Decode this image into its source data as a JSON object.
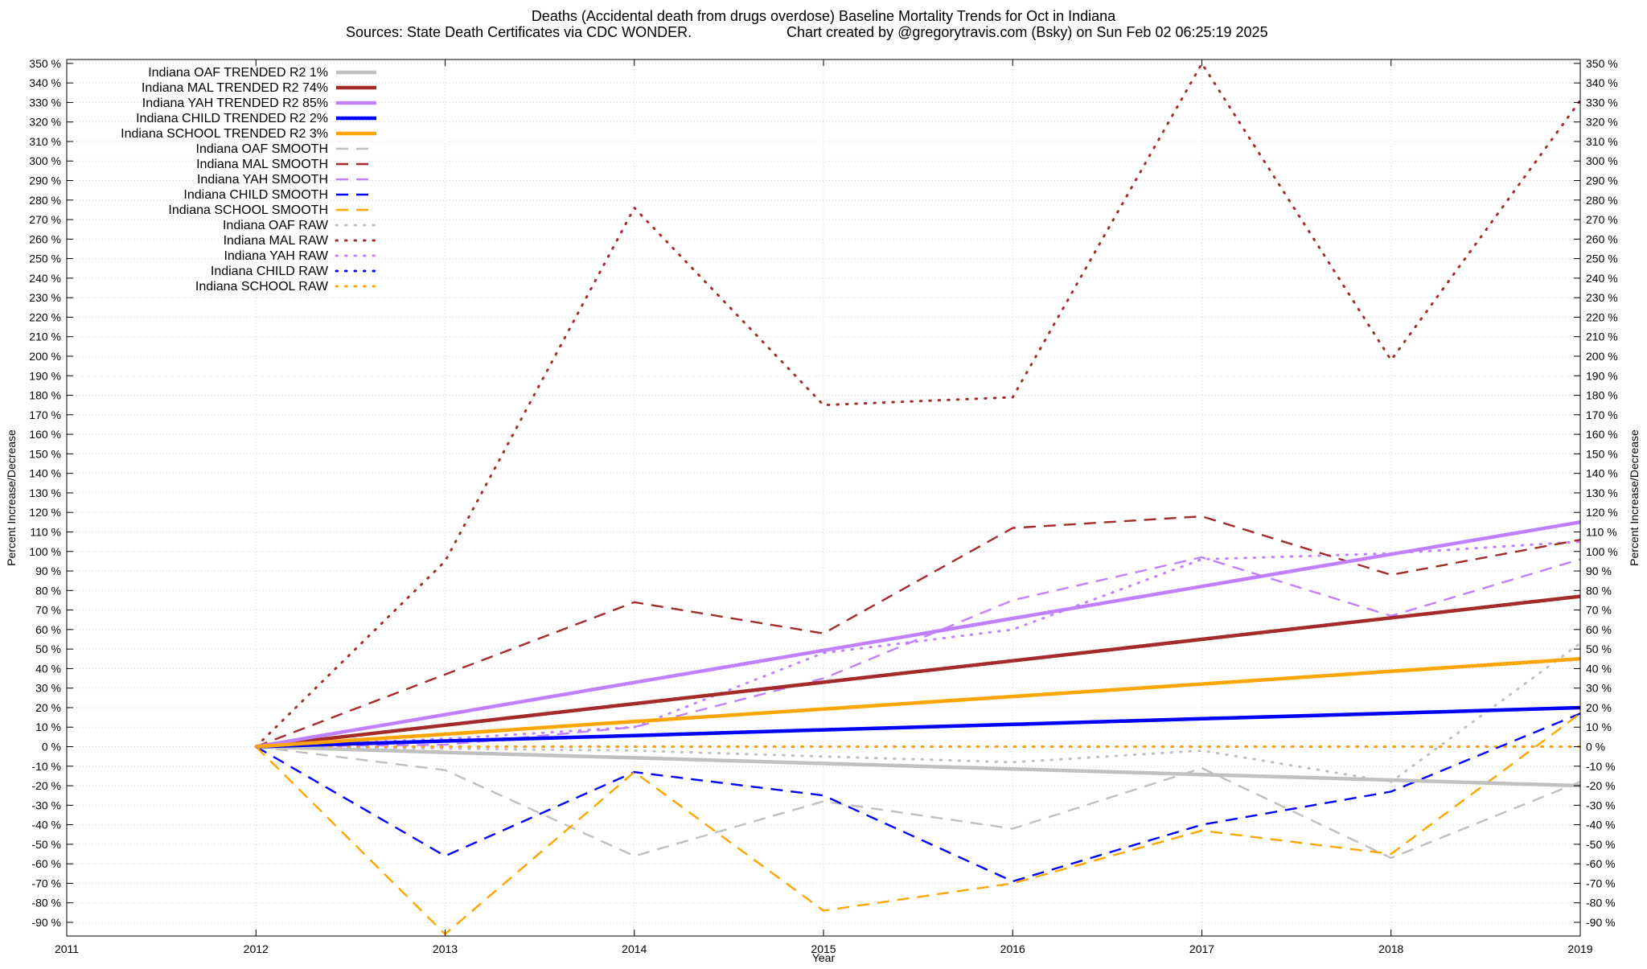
{
  "chart_data": {
    "type": "line",
    "title": "Deaths (Accidental death from drugs overdose)  Baseline Mortality Trends for Oct in Indiana",
    "subtitle_left": "Sources: State Death Certificates via CDC WONDER.",
    "subtitle_right": "Chart created by @gregorytravis.com (Bsky) on Sun Feb 02 06:25:19 2025",
    "xlabel": "Year",
    "ylabel_left": "Percent Increase/Decrease",
    "ylabel_right": "Percent Increase/Decrease",
    "xlim": [
      2011,
      2019
    ],
    "ylim": [
      -97,
      352
    ],
    "x_ticks": [
      2011,
      2012,
      2013,
      2014,
      2015,
      2016,
      2017,
      2018,
      2019
    ],
    "y_ticks": [
      350,
      340,
      330,
      320,
      310,
      300,
      290,
      280,
      270,
      260,
      250,
      240,
      230,
      220,
      210,
      200,
      190,
      180,
      170,
      160,
      150,
      140,
      130,
      120,
      110,
      100,
      90,
      80,
      70,
      60,
      50,
      40,
      30,
      20,
      10,
      0,
      -10,
      -20,
      -30,
      -40,
      -50,
      -60,
      -70,
      -80,
      -90
    ],
    "y_tick_suffix": " %",
    "grid": true,
    "legend_position": "top-left",
    "x": [
      2012,
      2013,
      2014,
      2015,
      2016,
      2017,
      2018,
      2019
    ],
    "series": [
      {
        "name": "Indiana OAF TRENDED R2  1%",
        "style": "solid",
        "color": "#c0c0c0",
        "values": [
          0,
          -2.9,
          -5.7,
          -8.6,
          -11.4,
          -14.3,
          -17.1,
          -20
        ]
      },
      {
        "name": "Indiana MAL TRENDED R2  74%",
        "style": "solid",
        "color": "#a52a2a",
        "values": [
          0,
          11,
          22,
          33,
          44,
          55,
          66,
          77
        ]
      },
      {
        "name": "Indiana YAH TRENDED R2  85%",
        "style": "solid",
        "color": "#c080ff",
        "values": [
          0,
          16.4,
          32.9,
          49.3,
          65.7,
          82.1,
          98.6,
          115
        ]
      },
      {
        "name": "Indiana CHILD TRENDED R2   2%",
        "style": "solid",
        "color": "#0000ff",
        "values": [
          0,
          2.9,
          5.7,
          8.6,
          11.4,
          14.3,
          17.1,
          20
        ]
      },
      {
        "name": "Indiana SCHOOL TRENDED R2   3%",
        "style": "solid",
        "color": "#ffa500",
        "values": [
          0,
          6.4,
          12.9,
          19.3,
          25.7,
          32.1,
          38.6,
          45
        ]
      },
      {
        "name": "Indiana OAF SMOOTH",
        "style": "dashed",
        "color": "#c0c0c0",
        "values": [
          0,
          -12,
          -56,
          -28,
          -42,
          -11,
          -57,
          -18
        ]
      },
      {
        "name": "Indiana MAL SMOOTH",
        "style": "dashed",
        "color": "#a52a2a",
        "values": [
          0,
          37,
          74,
          58,
          112,
          118,
          88,
          106
        ]
      },
      {
        "name": "Indiana YAH SMOOTH",
        "style": "dashed",
        "color": "#c080ff",
        "values": [
          0,
          1,
          10,
          35,
          75,
          97,
          67,
          96
        ]
      },
      {
        "name": "Indiana CHILD SMOOTH",
        "style": "dashed",
        "color": "#0000ff",
        "values": [
          0,
          -56,
          -13,
          -25,
          -69,
          -40,
          -23,
          17
        ]
      },
      {
        "name": "Indiana SCHOOL SMOOTH",
        "style": "dashed",
        "color": "#ffa500",
        "values": [
          0,
          -96,
          -13,
          -84,
          -70,
          -43,
          -55,
          17
        ]
      },
      {
        "name": "Indiana OAF RAW",
        "style": "dotted",
        "color": "#c0c0c0",
        "values": [
          0,
          -1,
          -2,
          -5,
          -8,
          -2,
          -18,
          53
        ]
      },
      {
        "name": "Indiana MAL RAW",
        "style": "dotted",
        "color": "#a52a2a",
        "values": [
          0,
          95,
          276,
          175,
          179,
          350,
          198,
          331
        ]
      },
      {
        "name": "Indiana YAH RAW",
        "style": "dotted",
        "color": "#c080ff",
        "values": [
          0,
          4,
          10,
          48,
          60,
          96,
          99,
          105
        ]
      },
      {
        "name": "Indiana CHILD RAW",
        "style": "dotted",
        "color": "#0000ff",
        "values": [
          0,
          0,
          0,
          0,
          0,
          0,
          0,
          0
        ]
      },
      {
        "name": "Indiana SCHOOL RAW",
        "style": "dotted",
        "color": "#ffa500",
        "values": [
          0,
          0,
          0,
          0,
          0,
          0,
          0,
          0
        ]
      }
    ]
  }
}
